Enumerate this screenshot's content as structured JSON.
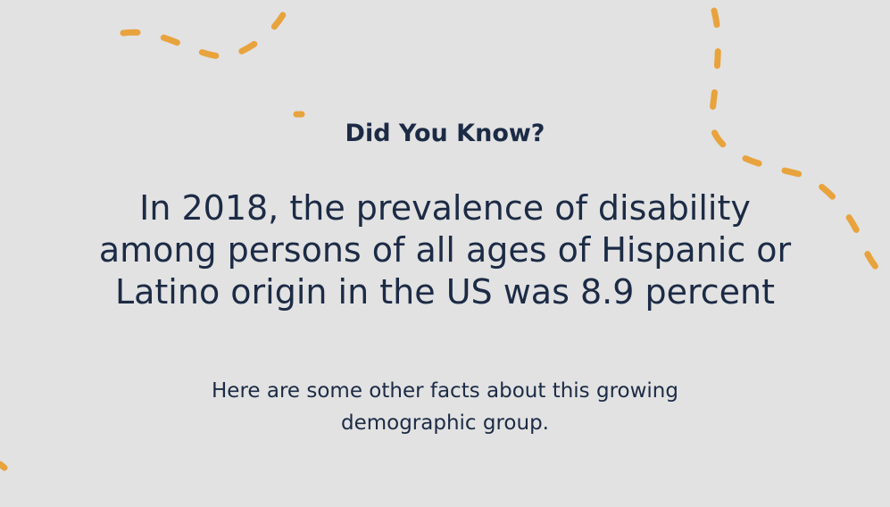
{
  "kicker": "Did You Know?",
  "headline": "In 2018, the prevalence of disability among persons of all ages of Hispanic or Latino origin in the US was 8.9 percent",
  "subtext": "Here are some other facts about this growing demographic group.",
  "colors": {
    "background": "#e2e2e2",
    "text": "#1c2b45",
    "accent": "#e8a33d"
  }
}
